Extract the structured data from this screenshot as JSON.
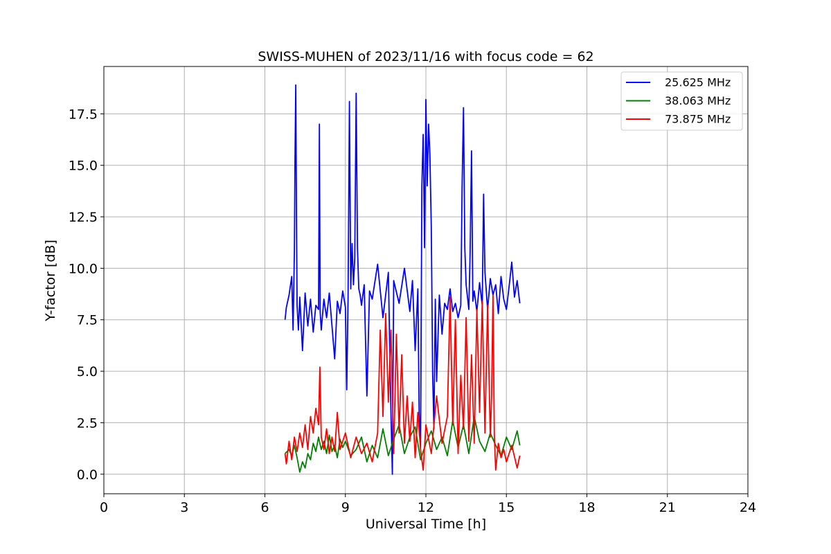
{
  "figure": {
    "title": "SWISS-MUHEN of 2023/11/16 with focus code = 62"
  },
  "chart_data": {
    "type": "line",
    "title": "SWISS-MUHEN of 2023/11/16 with focus code = 62",
    "xlabel": "Universal Time [h]",
    "ylabel": "Y-factor [dB]",
    "xlim": [
      0,
      24
    ],
    "ylim": [
      -0.95,
      19.8
    ],
    "x_ticks": [
      0,
      3,
      6,
      9,
      12,
      15,
      18,
      21,
      24
    ],
    "x_tick_labels": [
      "0",
      "3",
      "6",
      "9",
      "12",
      "15",
      "18",
      "21",
      "24"
    ],
    "y_ticks": [
      0,
      2.5,
      5,
      7.5,
      10,
      12.5,
      15,
      17.5
    ],
    "y_tick_labels": [
      "0.0",
      "2.5",
      "5.0",
      "7.5",
      "10.0",
      "12.5",
      "15.0",
      "17.5"
    ],
    "grid": true,
    "legend_position": "top-right",
    "series": [
      {
        "name": "25.625 MHz",
        "color": "#0000ff",
        "x": [
          6.75,
          6.8,
          6.9,
          7.0,
          7.05,
          7.1,
          7.12,
          7.15,
          7.18,
          7.2,
          7.25,
          7.3,
          7.4,
          7.5,
          7.6,
          7.7,
          7.8,
          7.9,
          8.0,
          8.03,
          8.06,
          8.1,
          8.2,
          8.3,
          8.4,
          8.5,
          8.6,
          8.7,
          8.8,
          8.9,
          9.0,
          9.05,
          9.1,
          9.15,
          9.2,
          9.25,
          9.3,
          9.35,
          9.4,
          9.45,
          9.5,
          9.55,
          9.6,
          9.7,
          9.8,
          9.9,
          10.0,
          10.2,
          10.4,
          10.6,
          10.7,
          10.75,
          10.8,
          11.0,
          11.2,
          11.4,
          11.5,
          11.6,
          11.7,
          11.75,
          11.8,
          11.85,
          11.9,
          11.95,
          12.0,
          12.05,
          12.1,
          12.15,
          12.2,
          12.25,
          12.3,
          12.35,
          12.4,
          12.5,
          12.6,
          12.7,
          12.8,
          12.9,
          13.0,
          13.1,
          13.2,
          13.3,
          13.35,
          13.4,
          13.45,
          13.5,
          13.6,
          13.65,
          13.7,
          13.75,
          13.8,
          13.9,
          14.0,
          14.1,
          14.15,
          14.2,
          14.3,
          14.4,
          14.5,
          14.6,
          14.7,
          14.8,
          14.9,
          15.0,
          15.1,
          15.2,
          15.3,
          15.4,
          15.5
        ],
        "y": [
          7.5,
          8.1,
          8.7,
          9.6,
          7.0,
          10.8,
          15.0,
          18.9,
          12.0,
          8.2,
          7.0,
          8.6,
          6.0,
          8.8,
          7.2,
          8.5,
          6.9,
          8.2,
          8.0,
          17.0,
          7.9,
          7.0,
          8.5,
          7.6,
          8.8,
          7.2,
          5.6,
          8.4,
          7.8,
          8.9,
          8.1,
          4.1,
          8.5,
          18.1,
          9.0,
          11.2,
          9.2,
          10.5,
          18.5,
          11.0,
          9.0,
          8.7,
          8.2,
          9.2,
          3.8,
          8.9,
          8.5,
          10.2,
          7.6,
          9.8,
          2.9,
          0.0,
          9.4,
          8.3,
          10.0,
          7.9,
          9.4,
          6.0,
          9.0,
          3.0,
          1.3,
          14.0,
          16.5,
          11.0,
          18.2,
          14.0,
          17.0,
          15.5,
          12.0,
          5.0,
          2.2,
          8.5,
          4.5,
          8.7,
          6.8,
          8.3,
          8.0,
          9.0,
          7.9,
          8.3,
          7.6,
          8.2,
          14.0,
          17.8,
          11.0,
          9.2,
          8.0,
          10.8,
          15.7,
          8.4,
          8.9,
          7.9,
          9.3,
          8.2,
          13.6,
          9.8,
          8.0,
          9.5,
          8.7,
          9.2,
          7.8,
          9.6,
          8.5,
          8.0,
          9.1,
          10.3,
          8.6,
          9.4,
          8.3
        ]
      },
      {
        "name": "38.063 MHz",
        "color": "#008000",
        "x": [
          6.75,
          6.9,
          7.0,
          7.1,
          7.2,
          7.3,
          7.4,
          7.5,
          7.6,
          7.7,
          7.8,
          7.9,
          8.0,
          8.1,
          8.2,
          8.3,
          8.4,
          8.5,
          8.6,
          8.7,
          8.8,
          8.9,
          9.0,
          9.2,
          9.4,
          9.6,
          9.8,
          10.0,
          10.2,
          10.4,
          10.6,
          10.8,
          11.0,
          11.2,
          11.4,
          11.6,
          11.8,
          12.0,
          12.2,
          12.4,
          12.6,
          12.8,
          13.0,
          13.2,
          13.4,
          13.6,
          13.8,
          14.0,
          14.2,
          14.4,
          14.6,
          14.8,
          15.0,
          15.2,
          15.4,
          15.5
        ],
        "y": [
          1.0,
          1.2,
          0.9,
          1.4,
          0.8,
          0.1,
          0.6,
          0.3,
          1.0,
          0.7,
          1.5,
          1.1,
          1.8,
          1.2,
          1.6,
          1.0,
          1.9,
          1.1,
          1.4,
          0.8,
          1.7,
          1.3,
          1.6,
          0.9,
          1.2,
          1.8,
          0.6,
          1.4,
          0.8,
          2.2,
          0.9,
          1.7,
          2.4,
          1.0,
          1.8,
          2.3,
          0.7,
          1.5,
          2.1,
          1.2,
          1.8,
          0.9,
          2.6,
          1.3,
          2.4,
          1.0,
          2.8,
          1.6,
          1.1,
          2.0,
          1.4,
          0.9,
          1.8,
          1.2,
          2.1,
          1.4
        ]
      },
      {
        "name": "73.875 MHz",
        "color": "#ff0000",
        "x": [
          6.75,
          6.8,
          6.9,
          7.0,
          7.1,
          7.2,
          7.3,
          7.4,
          7.5,
          7.6,
          7.7,
          7.8,
          7.9,
          8.0,
          8.05,
          8.1,
          8.2,
          8.3,
          8.4,
          8.5,
          8.6,
          8.7,
          8.8,
          9.0,
          9.2,
          9.4,
          9.6,
          9.8,
          10.0,
          10.2,
          10.3,
          10.4,
          10.5,
          10.6,
          10.7,
          10.8,
          10.9,
          11.0,
          11.1,
          11.2,
          11.3,
          11.4,
          11.5,
          11.6,
          11.7,
          11.8,
          11.9,
          12.0,
          12.2,
          12.4,
          12.6,
          12.8,
          12.9,
          13.0,
          13.1,
          13.2,
          13.3,
          13.4,
          13.5,
          13.6,
          13.7,
          13.8,
          13.9,
          14.0,
          14.1,
          14.2,
          14.3,
          14.4,
          14.45,
          14.5,
          14.55,
          14.6,
          14.7,
          14.8,
          14.9,
          15.0,
          15.2,
          15.4,
          15.5
        ],
        "y": [
          1.0,
          0.5,
          1.6,
          0.7,
          1.8,
          1.1,
          2.0,
          1.3,
          2.4,
          1.2,
          2.8,
          2.0,
          3.2,
          2.4,
          5.2,
          1.8,
          1.2,
          2.2,
          1.0,
          1.8,
          1.1,
          3.0,
          1.2,
          2.0,
          0.8,
          1.8,
          1.0,
          1.5,
          0.6,
          2.0,
          7.0,
          2.8,
          7.8,
          3.5,
          7.0,
          1.0,
          6.8,
          2.0,
          5.8,
          1.5,
          3.8,
          1.6,
          3.5,
          0.8,
          3.0,
          1.2,
          0.2,
          2.4,
          1.0,
          3.8,
          1.5,
          2.8,
          8.6,
          2.4,
          7.5,
          1.0,
          4.8,
          2.2,
          7.6,
          1.6,
          5.8,
          1.5,
          8.0,
          3.0,
          8.4,
          2.0,
          8.2,
          1.8,
          3.8,
          8.7,
          1.9,
          0.2,
          1.5,
          0.8,
          1.2,
          0.6,
          1.4,
          0.3,
          0.9
        ]
      }
    ]
  }
}
